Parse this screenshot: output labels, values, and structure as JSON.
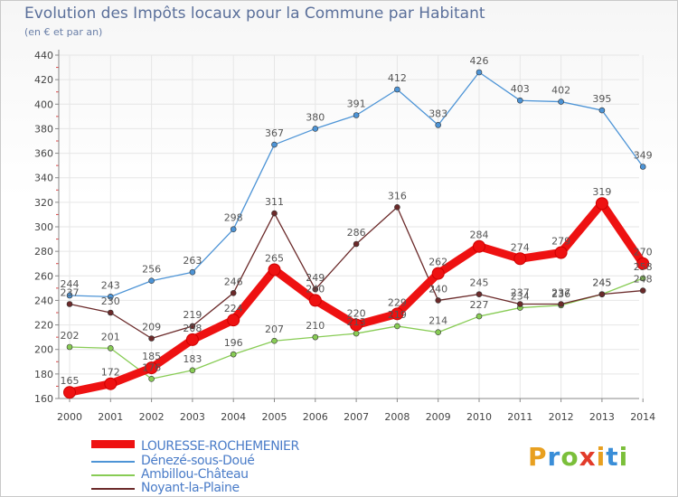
{
  "title": "Evolution des Impôts locaux pour la Commune par Habitant",
  "subtitle": "(en € et par an)",
  "brand": "Proxiti",
  "colors": {
    "main": "#ee1111",
    "denezé": "#4d94d6",
    "ambillou": "#88cc55",
    "noyant": "#6b2a2a",
    "grid": "#e6e6e6",
    "axis": "#888888",
    "tick_text": "#444444",
    "label_text": "#555555"
  },
  "chart_data": {
    "type": "line",
    "title": "Evolution des Impôts locaux pour la Commune par Habitant",
    "subtitle": "(en € et par an)",
    "xlabel": "",
    "ylabel": "",
    "ylim": [
      160,
      440
    ],
    "yticks": [
      160,
      180,
      200,
      220,
      240,
      260,
      280,
      300,
      320,
      340,
      360,
      380,
      400,
      420,
      440
    ],
    "x": [
      "2000",
      "2001",
      "2002",
      "2003",
      "2004",
      "2005",
      "2006",
      "2007",
      "2008",
      "2009",
      "2010",
      "2011",
      "2012",
      "2013",
      "2014"
    ],
    "series": [
      {
        "name": "LOURESSE-ROCHEMENIER",
        "key": "main",
        "values": [
          165,
          172,
          185,
          208,
          224,
          265,
          240,
          220,
          229,
          262,
          284,
          274,
          279,
          319,
          270
        ]
      },
      {
        "name": "Dénezé-sous-Doué",
        "key": "denezé",
        "values": [
          244,
          243,
          256,
          263,
          298,
          367,
          380,
          391,
          412,
          383,
          426,
          403,
          402,
          395,
          349
        ]
      },
      {
        "name": "Ambillou-Château",
        "key": "ambillou",
        "values": [
          202,
          201,
          176,
          183,
          196,
          207,
          210,
          213,
          219,
          214,
          227,
          234,
          236,
          245,
          258
        ]
      },
      {
        "name": "Noyant-la-Plaine",
        "key": "noyant",
        "values": [
          237,
          230,
          209,
          219,
          246,
          311,
          249,
          286,
          316,
          240,
          245,
          237,
          237,
          245,
          248
        ]
      }
    ],
    "legend_position": "bottom-left"
  }
}
